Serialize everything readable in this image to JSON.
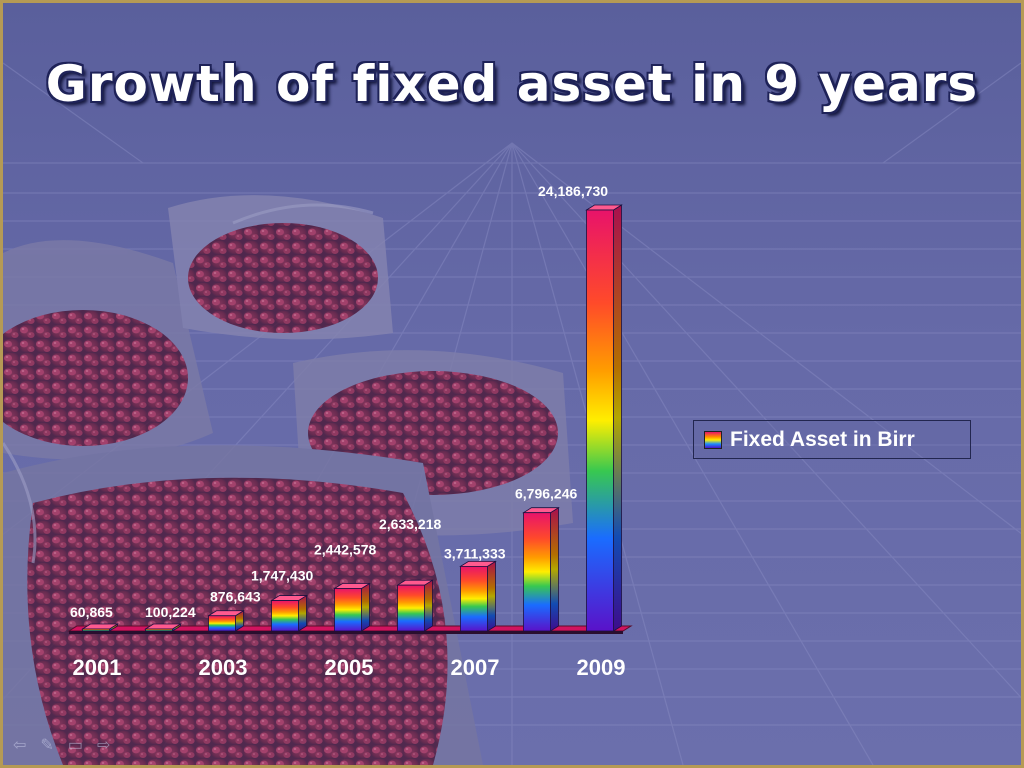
{
  "slide": {
    "title": "Growth of fixed asset in 9 years"
  },
  "colors": {
    "background": "#62669f",
    "grid": "#8a8dc4",
    "bar_top": "#e8136a",
    "bar_mid": "#ffee00",
    "bar_bottom": "#4a12c9",
    "label_text": "#ffffff"
  },
  "chart_data": {
    "type": "bar",
    "style": "3d-rainbow-gradient",
    "categories": [
      "2001",
      "2002",
      "2003",
      "2004",
      "2005",
      "2006",
      "2007",
      "2008",
      "2009"
    ],
    "tick_labels": [
      "2001",
      "2003",
      "2005",
      "2007",
      "2009"
    ],
    "series": [
      {
        "name": "Fixed Asset in Birr",
        "values": [
          60865,
          100224,
          876643,
          1747430,
          2442578,
          2633218,
          3711333,
          6796246,
          24186730
        ]
      }
    ],
    "data_labels": [
      "60,865",
      "100,224",
      "876,643",
      "1,747,430",
      "2,442,578",
      "2,633,218",
      "3,711,333",
      "6,796,246",
      "24,186,730"
    ],
    "title": "",
    "xlabel": "",
    "ylabel": "",
    "ylim": [
      0,
      24186730
    ],
    "grid": false,
    "legend": {
      "position": "right",
      "entries": [
        "Fixed Asset in Birr"
      ]
    }
  },
  "nav": {
    "icons": [
      {
        "name": "back-arrow-icon",
        "glyph": "⇦"
      },
      {
        "name": "pen-icon",
        "glyph": "✎"
      },
      {
        "name": "screen-icon",
        "glyph": "▭"
      },
      {
        "name": "forward-arrow-icon",
        "glyph": "⇨"
      }
    ]
  }
}
